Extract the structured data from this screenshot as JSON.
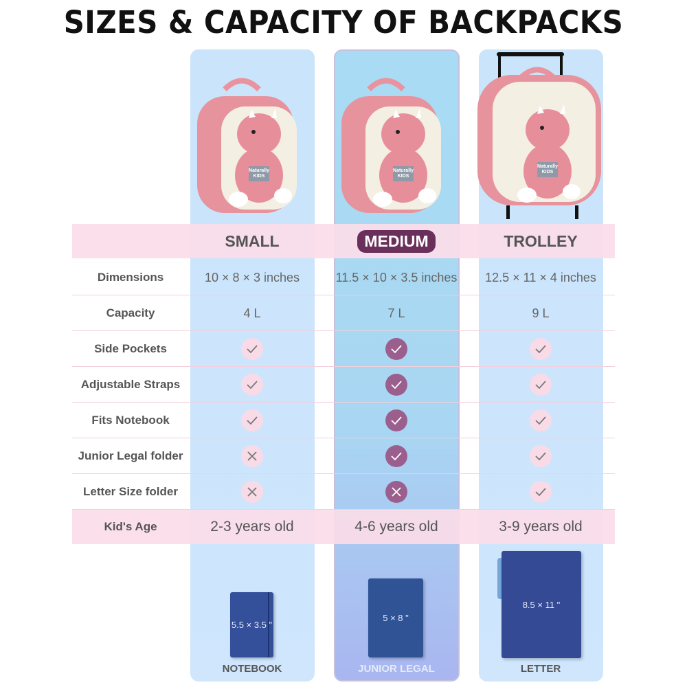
{
  "title": "SIZES & CAPACITY OF BACKPACKS",
  "columns": [
    {
      "name": "SMALL",
      "highlight": false
    },
    {
      "name": "MEDIUM",
      "highlight": true
    },
    {
      "name": "TROLLEY",
      "highlight": false
    }
  ],
  "rows": [
    {
      "label": "Dimensions",
      "values": [
        "10 × 8 × 3 inches",
        "11.5 × 10 × 3.5 inches",
        "12.5 × 11 × 4 inches"
      ]
    },
    {
      "label": "Capacity",
      "values": [
        "4 L",
        "7 L",
        "9 L"
      ]
    },
    {
      "label": "Side Pockets",
      "values": [
        "check",
        "check",
        "check"
      ]
    },
    {
      "label": "Adjustable Straps",
      "values": [
        "check",
        "check",
        "check"
      ]
    },
    {
      "label": "Fits Notebook",
      "values": [
        "check",
        "check",
        "check"
      ]
    },
    {
      "label": "Junior Legal folder",
      "values": [
        "cross",
        "check",
        "check"
      ]
    },
    {
      "label": "Letter Size folder",
      "values": [
        "cross",
        "cross",
        "check"
      ]
    }
  ],
  "age": {
    "label": "Kid's Age",
    "values": [
      "2-3 years old",
      "4-6 years old",
      "3-9 years old"
    ]
  },
  "items": [
    {
      "size": "5.5 × 3.5 \"",
      "label": "NOTEBOOK"
    },
    {
      "size": "5 × 8 \"",
      "label": "JUNIOR LEGAL"
    },
    {
      "size": "8.5 × 11 \"",
      "label": "LETTER"
    }
  ],
  "brand_badge": "Naturally KIDS",
  "colors": {
    "accent": "#6b2f5c",
    "check_dark": "#9b5f8e",
    "check_pale": "#f8dbe6",
    "band": "#fbdde8",
    "column": "#cfe6fd",
    "book": "#2f4a8f"
  }
}
